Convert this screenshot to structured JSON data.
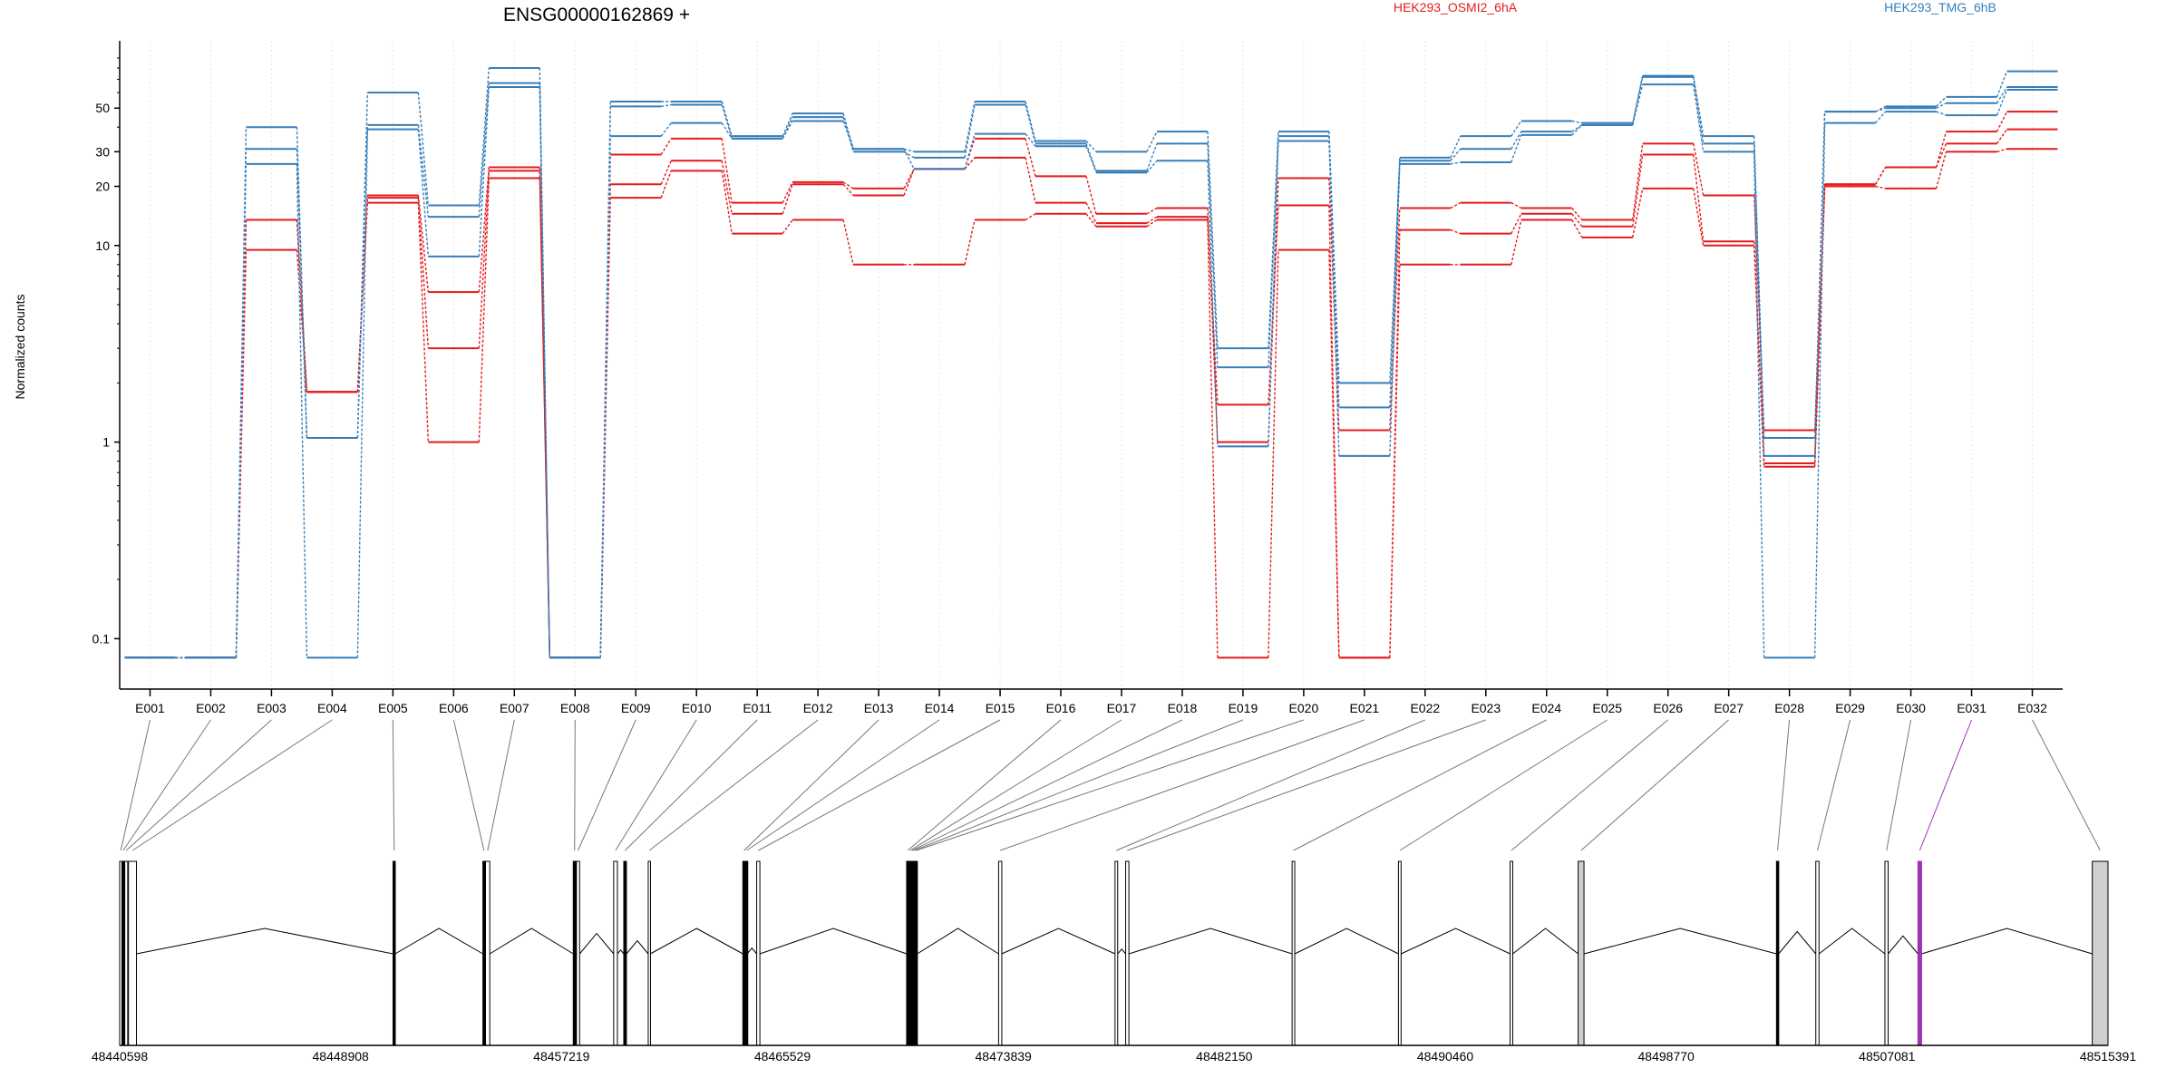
{
  "chart_data": {
    "type": "line",
    "title": "ENSG00000162869 +",
    "ylabel": "Normalized counts",
    "yscale": "log",
    "ylim": [
      0.07,
      110
    ],
    "yticks": [
      0.1,
      1,
      10,
      20,
      30,
      50
    ],
    "ytick_labels": [
      "0.1",
      "1",
      "10",
      "20",
      "30",
      "50"
    ],
    "legend_placement": "top-right",
    "grid": "vertical dotted",
    "categories": [
      "E001",
      "E002",
      "E003",
      "E004",
      "E005",
      "E006",
      "E007",
      "E008",
      "E009",
      "E010",
      "E011",
      "E012",
      "E013",
      "E014",
      "E015",
      "E016",
      "E017",
      "E018",
      "E019",
      "E020",
      "E021",
      "E022",
      "E023",
      "E024",
      "E025",
      "E026",
      "E027",
      "E028",
      "E029",
      "E030",
      "E031",
      "E032"
    ],
    "series": [
      {
        "name": "HEK293_OSMI2_6hA",
        "group": "HEK293_OSMI2_6hA",
        "color": "#e41a1c",
        "values": [
          0.08,
          0.08,
          13.5,
          1.8,
          18,
          5.8,
          25,
          0.08,
          29,
          35,
          16.5,
          21,
          19.5,
          24.5,
          35,
          22.5,
          14.5,
          15.5,
          1.0,
          22,
          1.15,
          15.5,
          16.5,
          15.5,
          13.5,
          33,
          18,
          1.15,
          20.5,
          25,
          38,
          48
        ]
      },
      {
        "name": "",
        "group": "HEK293_OSMI2_6hA",
        "color": "#e41a1c",
        "values": [
          0.08,
          0.08,
          13.5,
          1.8,
          17.5,
          3.0,
          24,
          0.08,
          20.5,
          27,
          14.5,
          20.5,
          18,
          24.5,
          28,
          16.5,
          13,
          14,
          1.55,
          16,
          0.08,
          12,
          11.5,
          14.5,
          12.5,
          29,
          10.5,
          0.78,
          20.5,
          25,
          33,
          39
        ]
      },
      {
        "name": "",
        "group": "HEK293_OSMI2_6hA",
        "color": "#e41a1c",
        "values": [
          0.08,
          0.08,
          9.5,
          1.8,
          16.5,
          1.0,
          22,
          0.08,
          17.5,
          24,
          11.5,
          13.5,
          8,
          8,
          13.5,
          14.5,
          12.5,
          13.5,
          0.08,
          9.5,
          0.08,
          8,
          8,
          13.5,
          11,
          19.5,
          10,
          0.75,
          20,
          19.5,
          30,
          31
        ]
      },
      {
        "name": "HEK293_TMG_6hB",
        "group": "HEK293_TMG_6hB",
        "color": "#377eb8",
        "values": [
          0.08,
          0.08,
          40,
          1.05,
          60,
          16,
          80,
          0.08,
          54,
          54,
          36,
          47,
          31,
          30,
          54,
          34,
          30,
          38,
          3.0,
          38,
          2.0,
          28,
          36,
          43,
          42,
          73,
          36,
          1.05,
          48,
          51,
          57,
          77
        ]
      },
      {
        "name": "",
        "group": "HEK293_TMG_6hB",
        "color": "#377eb8",
        "values": [
          0.08,
          0.08,
          31,
          1.05,
          41,
          14,
          67,
          0.08,
          51,
          52,
          35,
          45,
          30,
          28,
          52,
          33,
          24,
          33,
          2.4,
          36,
          1.5,
          27,
          31,
          38,
          41,
          72,
          33,
          0.85,
          48,
          50,
          53,
          64
        ]
      },
      {
        "name": "",
        "group": "HEK293_TMG_6hB",
        "color": "#377eb8",
        "values": [
          0.08,
          0.08,
          26,
          0.08,
          39,
          8.8,
          64,
          0.08,
          36,
          42,
          35,
          43,
          31,
          24.5,
          37,
          32,
          23.5,
          27,
          0.95,
          34,
          0.85,
          26,
          26.5,
          36.5,
          41,
          66,
          30,
          0.08,
          42,
          48,
          46,
          62
        ]
      }
    ],
    "gene_model": {
      "coordinate_labels": [
        "48440598",
        "48448908",
        "48457219",
        "48465529",
        "48473839",
        "48482150",
        "48490460",
        "48498770",
        "48507081",
        "48515391"
      ],
      "coord_range": [
        48440598,
        48515391
      ],
      "exons": [
        {
          "label": "E001",
          "start": 48440598,
          "end": 48440680,
          "fill": "white"
        },
        {
          "label": "E002",
          "start": 48440690,
          "end": 48440760,
          "fill": "black"
        },
        {
          "label": "E003",
          "start": 48440790,
          "end": 48440900,
          "fill": "white"
        },
        {
          "label": "E004",
          "start": 48440930,
          "end": 48441230,
          "fill": "white"
        },
        {
          "label": "E005",
          "start": 48450880,
          "end": 48450960,
          "fill": "black"
        },
        {
          "label": "E006",
          "start": 48454260,
          "end": 48454340,
          "fill": "black"
        },
        {
          "label": "E007",
          "start": 48454360,
          "end": 48454520,
          "fill": "white"
        },
        {
          "label": "E008",
          "start": 48457660,
          "end": 48457760,
          "fill": "black"
        },
        {
          "label": "E009",
          "start": 48457780,
          "end": 48457900,
          "fill": "white"
        },
        {
          "label": "E010",
          "start": 48459180,
          "end": 48459320,
          "fill": "white"
        },
        {
          "label": "E011",
          "start": 48459560,
          "end": 48459660,
          "fill": "black"
        },
        {
          "label": "E012",
          "start": 48460480,
          "end": 48460560,
          "fill": "white"
        },
        {
          "label": "E013",
          "start": 48464040,
          "end": 48464120,
          "fill": "black"
        },
        {
          "label": "E014",
          "start": 48464140,
          "end": 48464200,
          "fill": "black"
        },
        {
          "label": "E015",
          "start": 48464560,
          "end": 48464680,
          "fill": "white"
        },
        {
          "label": "E016",
          "start": 48470200,
          "end": 48470260,
          "fill": "black"
        },
        {
          "label": "E017",
          "start": 48470290,
          "end": 48470340,
          "fill": "black"
        },
        {
          "label": "E018",
          "start": 48470360,
          "end": 48470420,
          "fill": "black"
        },
        {
          "label": "E019",
          "start": 48470440,
          "end": 48470500,
          "fill": "black"
        },
        {
          "label": "E020",
          "start": 48470520,
          "end": 48470600,
          "fill": "black"
        },
        {
          "label": "E021",
          "start": 48473660,
          "end": 48473780,
          "fill": "white"
        },
        {
          "label": "E022",
          "start": 48478040,
          "end": 48478140,
          "fill": "white"
        },
        {
          "label": "E023",
          "start": 48478440,
          "end": 48478560,
          "fill": "white"
        },
        {
          "label": "E024",
          "start": 48484700,
          "end": 48484800,
          "fill": "white"
        },
        {
          "label": "E025",
          "start": 48488700,
          "end": 48488800,
          "fill": "white"
        },
        {
          "label": "E026",
          "start": 48492900,
          "end": 48493000,
          "fill": "white"
        },
        {
          "label": "E027",
          "start": 48495460,
          "end": 48495680,
          "fill": "gray"
        },
        {
          "label": "E028",
          "start": 48502920,
          "end": 48503000,
          "fill": "black"
        },
        {
          "label": "E029",
          "start": 48504400,
          "end": 48504520,
          "fill": "white"
        },
        {
          "label": "E030",
          "start": 48507000,
          "end": 48507120,
          "fill": "white"
        },
        {
          "label": "E031",
          "start": 48508240,
          "end": 48508380,
          "fill": "purple"
        },
        {
          "label": "E032",
          "start": 48514800,
          "end": 48515391,
          "fill": "gray"
        }
      ]
    }
  }
}
